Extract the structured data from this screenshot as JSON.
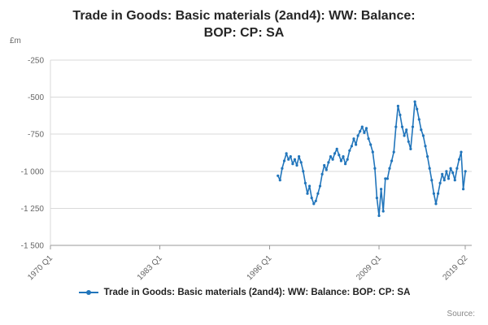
{
  "title": {
    "line1": "Trade in Goods: Basic materials (2and4): WW: Balance:",
    "line2": "BOP: CP: SA"
  },
  "source_label": "Source:",
  "legend": {
    "label": "Trade in Goods: Basic materials (2and4): WW: Balance: BOP: CP: SA"
  },
  "colors": {
    "line": "#2175bb",
    "grid": "#d9d9d9",
    "axis": "#999999",
    "tick_text": "#666666"
  },
  "chart_data": {
    "type": "line",
    "title": "Trade in Goods: Basic materials (2and4): WW: Balance: BOP: CP: SA",
    "xlabel": "",
    "ylabel": "£m",
    "ylim": [
      -1500,
      -250
    ],
    "xlim": [
      1970,
      2020
    ],
    "grid": true,
    "legend_position": "bottom",
    "y_ticks": [
      {
        "value": -250,
        "label": "-250"
      },
      {
        "value": -500,
        "label": "-500"
      },
      {
        "value": -750,
        "label": "-750"
      },
      {
        "value": -1000,
        "label": "-1 000"
      },
      {
        "value": -1250,
        "label": "-1 250"
      },
      {
        "value": -1500,
        "label": "-1 500"
      }
    ],
    "x_ticks": [
      {
        "quarter": "1970 Q1"
      },
      {
        "quarter": "1983 Q1"
      },
      {
        "quarter": "1996 Q1"
      },
      {
        "quarter": "2009 Q1"
      },
      {
        "quarter": "2019 Q2"
      }
    ],
    "series": [
      {
        "name": "Trade in Goods: Basic materials (2and4): WW: Balance: BOP: CP: SA",
        "x": [
          "1997 Q1",
          "1997 Q2",
          "1997 Q3",
          "1997 Q4",
          "1998 Q1",
          "1998 Q2",
          "1998 Q3",
          "1998 Q4",
          "1999 Q1",
          "1999 Q2",
          "1999 Q3",
          "1999 Q4",
          "2000 Q1",
          "2000 Q2",
          "2000 Q3",
          "2000 Q4",
          "2001 Q1",
          "2001 Q2",
          "2001 Q3",
          "2001 Q4",
          "2002 Q1",
          "2002 Q2",
          "2002 Q3",
          "2002 Q4",
          "2003 Q1",
          "2003 Q2",
          "2003 Q3",
          "2003 Q4",
          "2004 Q1",
          "2004 Q2",
          "2004 Q3",
          "2004 Q4",
          "2005 Q1",
          "2005 Q2",
          "2005 Q3",
          "2005 Q4",
          "2006 Q1",
          "2006 Q2",
          "2006 Q3",
          "2006 Q4",
          "2007 Q1",
          "2007 Q2",
          "2007 Q3",
          "2007 Q4",
          "2008 Q1",
          "2008 Q2",
          "2008 Q3",
          "2008 Q4",
          "2009 Q1",
          "2009 Q2",
          "2009 Q3",
          "2009 Q4",
          "2010 Q1",
          "2010 Q2",
          "2010 Q3",
          "2010 Q4",
          "2011 Q1",
          "2011 Q2",
          "2011 Q3",
          "2011 Q4",
          "2012 Q1",
          "2012 Q2",
          "2012 Q3",
          "2012 Q4",
          "2013 Q1",
          "2013 Q2",
          "2013 Q3",
          "2013 Q4",
          "2014 Q1",
          "2014 Q2",
          "2014 Q3",
          "2014 Q4",
          "2015 Q1",
          "2015 Q2",
          "2015 Q3",
          "2015 Q4",
          "2016 Q1",
          "2016 Q2",
          "2016 Q3",
          "2016 Q4",
          "2017 Q1",
          "2017 Q2",
          "2017 Q3",
          "2017 Q4",
          "2018 Q1",
          "2018 Q2",
          "2018 Q3",
          "2018 Q4",
          "2019 Q1",
          "2019 Q2"
        ],
        "values": [
          -1030,
          -1060,
          -980,
          -930,
          -880,
          -920,
          -900,
          -950,
          -920,
          -960,
          -900,
          -940,
          -1000,
          -1080,
          -1150,
          -1100,
          -1180,
          -1220,
          -1200,
          -1150,
          -1100,
          -1020,
          -960,
          -990,
          -940,
          -900,
          -920,
          -880,
          -850,
          -890,
          -930,
          -900,
          -950,
          -920,
          -860,
          -830,
          -780,
          -820,
          -760,
          -730,
          -700,
          -740,
          -710,
          -780,
          -820,
          -870,
          -980,
          -1180,
          -1300,
          -1120,
          -1270,
          -1050,
          -1050,
          -980,
          -930,
          -870,
          -700,
          -560,
          -620,
          -700,
          -760,
          -720,
          -800,
          -850,
          -700,
          -530,
          -580,
          -650,
          -720,
          -760,
          -830,
          -900,
          -980,
          -1060,
          -1150,
          -1220,
          -1150,
          -1080,
          -1020,
          -1060,
          -1000,
          -1050,
          -980,
          -1010,
          -1060,
          -980,
          -920,
          -870,
          -1120,
          -1000
        ]
      }
    ]
  }
}
